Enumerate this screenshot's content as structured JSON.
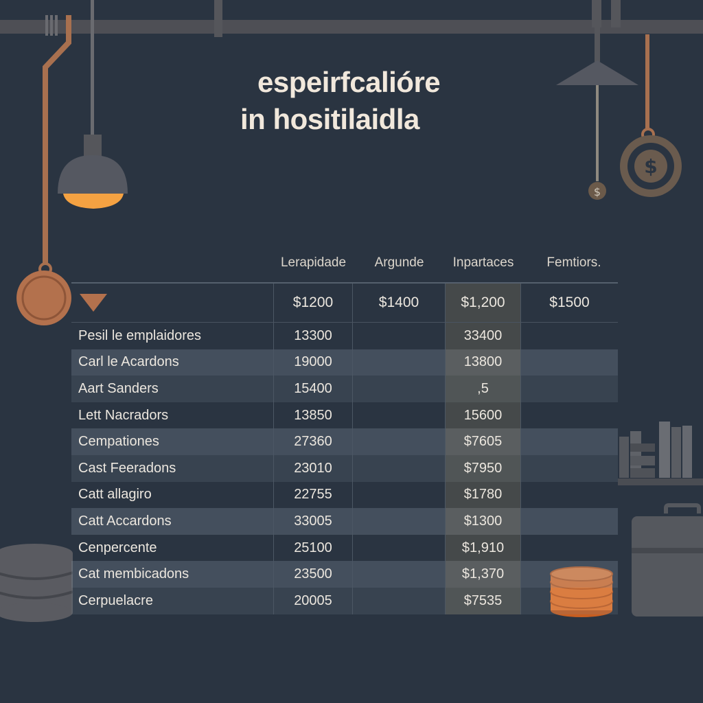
{
  "heading": {
    "line1": "espeirfcalióre",
    "line2": "in hositilaidla"
  },
  "columns": [
    "Lerapidade",
    "Argunde",
    "Inpartaces",
    "Femtiors."
  ],
  "header_row": {
    "dropdown_icon": "caret-down-icon",
    "values": [
      "$1200",
      "$1400",
      "$1,200",
      "$1500"
    ]
  },
  "rows": [
    {
      "name": "Pesil le emplaidores",
      "c1": "13300",
      "c3": "33400"
    },
    {
      "name": "Carl le Acardons",
      "c1": "19000",
      "c3": "13800"
    },
    {
      "name": "Aart Sanders",
      "c1": "15400",
      "c3": ",5"
    },
    {
      "name": "Lett Nacradors",
      "c1": "13850",
      "c3": "15600"
    },
    {
      "name": "Cempationes",
      "c1": "27360",
      "c3": "$7605"
    },
    {
      "name": "Cast Feeradons",
      "c1": "23010",
      "c3": "$7950"
    },
    {
      "name": "Catt allagiro",
      "c1": "22755",
      "c3": "$1780"
    },
    {
      "name": "Catt Accardons",
      "c1": "33005",
      "c3": "$1300"
    },
    {
      "name": "Cenpercente",
      "c1": "25100",
      "c3": "$1,910"
    },
    {
      "name": "Cat membicadons",
      "c1": "23500",
      "c3": "$1,370"
    },
    {
      "name": "Cerpuelacre",
      "c1": "20005",
      "c3": "$7535"
    }
  ],
  "colors": {
    "background": "#2a3441",
    "lamp_glow": "#f5a242",
    "copper": "#b3714d",
    "coin_orange": "#f07a2f"
  },
  "decor_icons": [
    "pendant-lamp-icon",
    "copper-pan-icon",
    "dollar-coin-icon",
    "database-stack-icon",
    "coin-stack-icon",
    "bookshelf-icon",
    "briefcase-icon"
  ]
}
